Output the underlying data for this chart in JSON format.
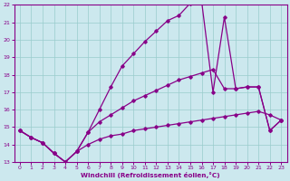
{
  "xlabel": "Windchill (Refroidissement éolien,°C)",
  "xlim": [
    -0.5,
    23.5
  ],
  "ylim": [
    13,
    22
  ],
  "yticks": [
    13,
    14,
    15,
    16,
    17,
    18,
    19,
    20,
    21,
    22
  ],
  "xticks": [
    0,
    1,
    2,
    3,
    4,
    5,
    6,
    7,
    8,
    9,
    10,
    11,
    12,
    13,
    14,
    15,
    16,
    17,
    18,
    19,
    20,
    21,
    22,
    23
  ],
  "bg_color": "#cce8ee",
  "line_color": "#880088",
  "grid_color": "#99cccc",
  "line_top_x": [
    0,
    1,
    2,
    3,
    4,
    5,
    6,
    7,
    8,
    9,
    10,
    11,
    12,
    13,
    14,
    15,
    16,
    17,
    18,
    19,
    20,
    21,
    22,
    23
  ],
  "line_top_y": [
    14.8,
    14.4,
    14.1,
    13.5,
    13.0,
    13.6,
    14.7,
    16.0,
    17.3,
    18.5,
    19.2,
    19.9,
    20.5,
    21.1,
    21.4,
    22.1,
    22.2,
    17.0,
    21.3,
    17.2,
    17.3,
    17.3,
    14.8,
    15.4
  ],
  "line_mid_x": [
    0,
    1,
    2,
    3,
    4,
    5,
    6,
    7,
    8,
    9,
    10,
    11,
    12,
    13,
    14,
    15,
    16,
    17,
    18,
    19,
    20,
    21,
    22,
    23
  ],
  "line_mid_y": [
    14.8,
    14.4,
    14.1,
    13.5,
    13.0,
    13.6,
    14.7,
    15.3,
    15.7,
    16.1,
    16.5,
    16.8,
    17.1,
    17.4,
    17.7,
    17.9,
    18.1,
    18.3,
    17.2,
    17.2,
    17.3,
    17.3,
    14.8,
    15.4
  ],
  "line_bot_x": [
    0,
    1,
    2,
    3,
    4,
    5,
    6,
    7,
    8,
    9,
    10,
    11,
    12,
    13,
    14,
    15,
    16,
    17,
    18,
    19,
    20,
    21,
    22,
    23
  ],
  "line_bot_y": [
    14.8,
    14.4,
    14.1,
    13.5,
    13.0,
    13.6,
    14.0,
    14.3,
    14.5,
    14.6,
    14.8,
    14.9,
    15.0,
    15.1,
    15.2,
    15.3,
    15.4,
    15.5,
    15.6,
    15.7,
    15.8,
    15.9,
    15.7,
    15.4
  ]
}
